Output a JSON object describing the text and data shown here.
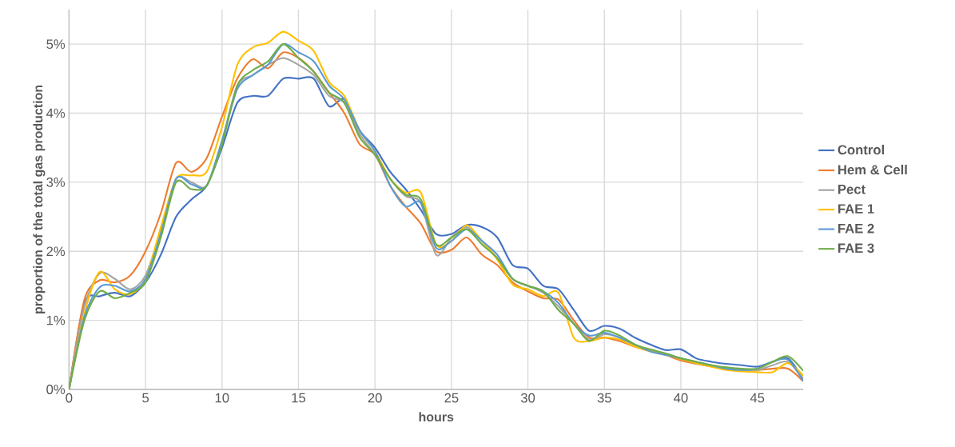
{
  "chart_data": {
    "type": "line",
    "xlabel": "hours",
    "ylabel": "proportion of the total gas production",
    "x": [
      0,
      1,
      2,
      3,
      4,
      5,
      6,
      7,
      8,
      9,
      10,
      11,
      12,
      13,
      14,
      15,
      16,
      17,
      18,
      19,
      20,
      21,
      22,
      23,
      24,
      25,
      26,
      27,
      28,
      29,
      30,
      31,
      32,
      33,
      34,
      35,
      36,
      37,
      38,
      39,
      40,
      41,
      42,
      43,
      44,
      45,
      46,
      47,
      48
    ],
    "xlim": [
      0,
      48
    ],
    "xticks": [
      0,
      5,
      10,
      15,
      20,
      25,
      30,
      35,
      40,
      45
    ],
    "ylim": [
      0,
      5.5
    ],
    "yticks": [
      {
        "value": 0,
        "label": "0%"
      },
      {
        "value": 1,
        "label": "1%"
      },
      {
        "value": 2,
        "label": "2%"
      },
      {
        "value": 3,
        "label": "3%"
      },
      {
        "value": 4,
        "label": "4%"
      },
      {
        "value": 5,
        "label": "5%"
      }
    ],
    "grid": true,
    "legend": "right",
    "marker": "none",
    "line_style": "solid",
    "series": [
      {
        "name": "Control",
        "color": "#4472c4",
        "values": [
          0,
          1.25,
          1.35,
          1.4,
          1.35,
          1.55,
          1.95,
          2.5,
          2.75,
          2.95,
          3.5,
          4.15,
          4.25,
          4.25,
          4.5,
          4.5,
          4.5,
          4.1,
          4.2,
          3.75,
          3.5,
          3.15,
          2.9,
          2.6,
          2.25,
          2.25,
          2.38,
          2.35,
          2.2,
          1.8,
          1.75,
          1.5,
          1.45,
          1.15,
          0.85,
          0.92,
          0.88,
          0.75,
          0.65,
          0.57,
          0.58,
          0.45,
          0.4,
          0.37,
          0.35,
          0.33,
          0.4,
          0.45,
          0.15
        ]
      },
      {
        "name": "Hem & Cell",
        "color": "#ed7d31",
        "values": [
          0,
          1.3,
          1.58,
          1.55,
          1.65,
          2.0,
          2.55,
          3.28,
          3.15,
          3.35,
          3.95,
          4.5,
          4.78,
          4.65,
          4.88,
          4.8,
          4.6,
          4.3,
          4.0,
          3.55,
          3.4,
          2.95,
          2.65,
          2.4,
          2.0,
          2.02,
          2.2,
          1.95,
          1.8,
          1.55,
          1.42,
          1.32,
          1.3,
          1.0,
          0.75,
          0.75,
          0.7,
          0.62,
          0.57,
          0.5,
          0.42,
          0.37,
          0.33,
          0.3,
          0.28,
          0.28,
          0.3,
          0.3,
          0.12
        ]
      },
      {
        "name": "Pect",
        "color": "#a5a5a5",
        "values": [
          0,
          1.2,
          1.68,
          1.6,
          1.45,
          1.65,
          2.3,
          3.05,
          3.0,
          2.95,
          3.6,
          4.4,
          4.55,
          4.7,
          4.8,
          4.7,
          4.55,
          4.25,
          4.15,
          3.7,
          3.4,
          3.05,
          2.8,
          2.7,
          1.95,
          2.2,
          2.35,
          2.15,
          1.9,
          1.6,
          1.5,
          1.4,
          1.2,
          0.95,
          0.72,
          0.8,
          0.75,
          0.62,
          0.57,
          0.52,
          0.45,
          0.38,
          0.34,
          0.3,
          0.28,
          0.28,
          0.35,
          0.4,
          0.15
        ]
      },
      {
        "name": "FAE 1",
        "color": "#ffc000",
        "values": [
          0,
          1.1,
          1.7,
          1.45,
          1.38,
          1.6,
          2.35,
          3.05,
          3.1,
          3.15,
          3.8,
          4.7,
          4.95,
          5.02,
          5.18,
          5.05,
          4.9,
          4.45,
          4.25,
          3.75,
          3.45,
          3.05,
          2.85,
          2.85,
          2.1,
          2.15,
          2.38,
          2.15,
          1.88,
          1.52,
          1.45,
          1.35,
          1.4,
          0.75,
          0.7,
          0.75,
          0.72,
          0.62,
          0.55,
          0.5,
          0.44,
          0.38,
          0.33,
          0.28,
          0.26,
          0.25,
          0.25,
          0.38,
          0.2
        ]
      },
      {
        "name": "FAE 2",
        "color": "#5b9bd5",
        "values": [
          0,
          1.05,
          1.48,
          1.5,
          1.42,
          1.6,
          2.25,
          3.05,
          2.97,
          2.95,
          3.6,
          4.35,
          4.55,
          4.7,
          5.0,
          4.88,
          4.75,
          4.4,
          4.2,
          3.75,
          3.45,
          2.95,
          2.65,
          2.7,
          2.05,
          2.15,
          2.32,
          2.15,
          1.95,
          1.6,
          1.5,
          1.42,
          1.25,
          0.95,
          0.78,
          0.82,
          0.75,
          0.65,
          0.55,
          0.5,
          0.45,
          0.4,
          0.35,
          0.3,
          0.28,
          0.3,
          0.4,
          0.43,
          0.12
        ]
      },
      {
        "name": "FAE 3",
        "color": "#70ad47",
        "values": [
          0,
          1.0,
          1.42,
          1.32,
          1.4,
          1.55,
          2.2,
          3.0,
          2.9,
          2.95,
          3.55,
          4.4,
          4.62,
          4.75,
          5.0,
          4.8,
          4.6,
          4.3,
          4.15,
          3.65,
          3.4,
          3.05,
          2.82,
          2.75,
          2.1,
          2.2,
          2.32,
          2.1,
          1.9,
          1.6,
          1.5,
          1.42,
          1.15,
          0.95,
          0.7,
          0.85,
          0.78,
          0.65,
          0.58,
          0.52,
          0.45,
          0.4,
          0.35,
          0.32,
          0.3,
          0.3,
          0.4,
          0.48,
          0.27
        ]
      }
    ]
  }
}
